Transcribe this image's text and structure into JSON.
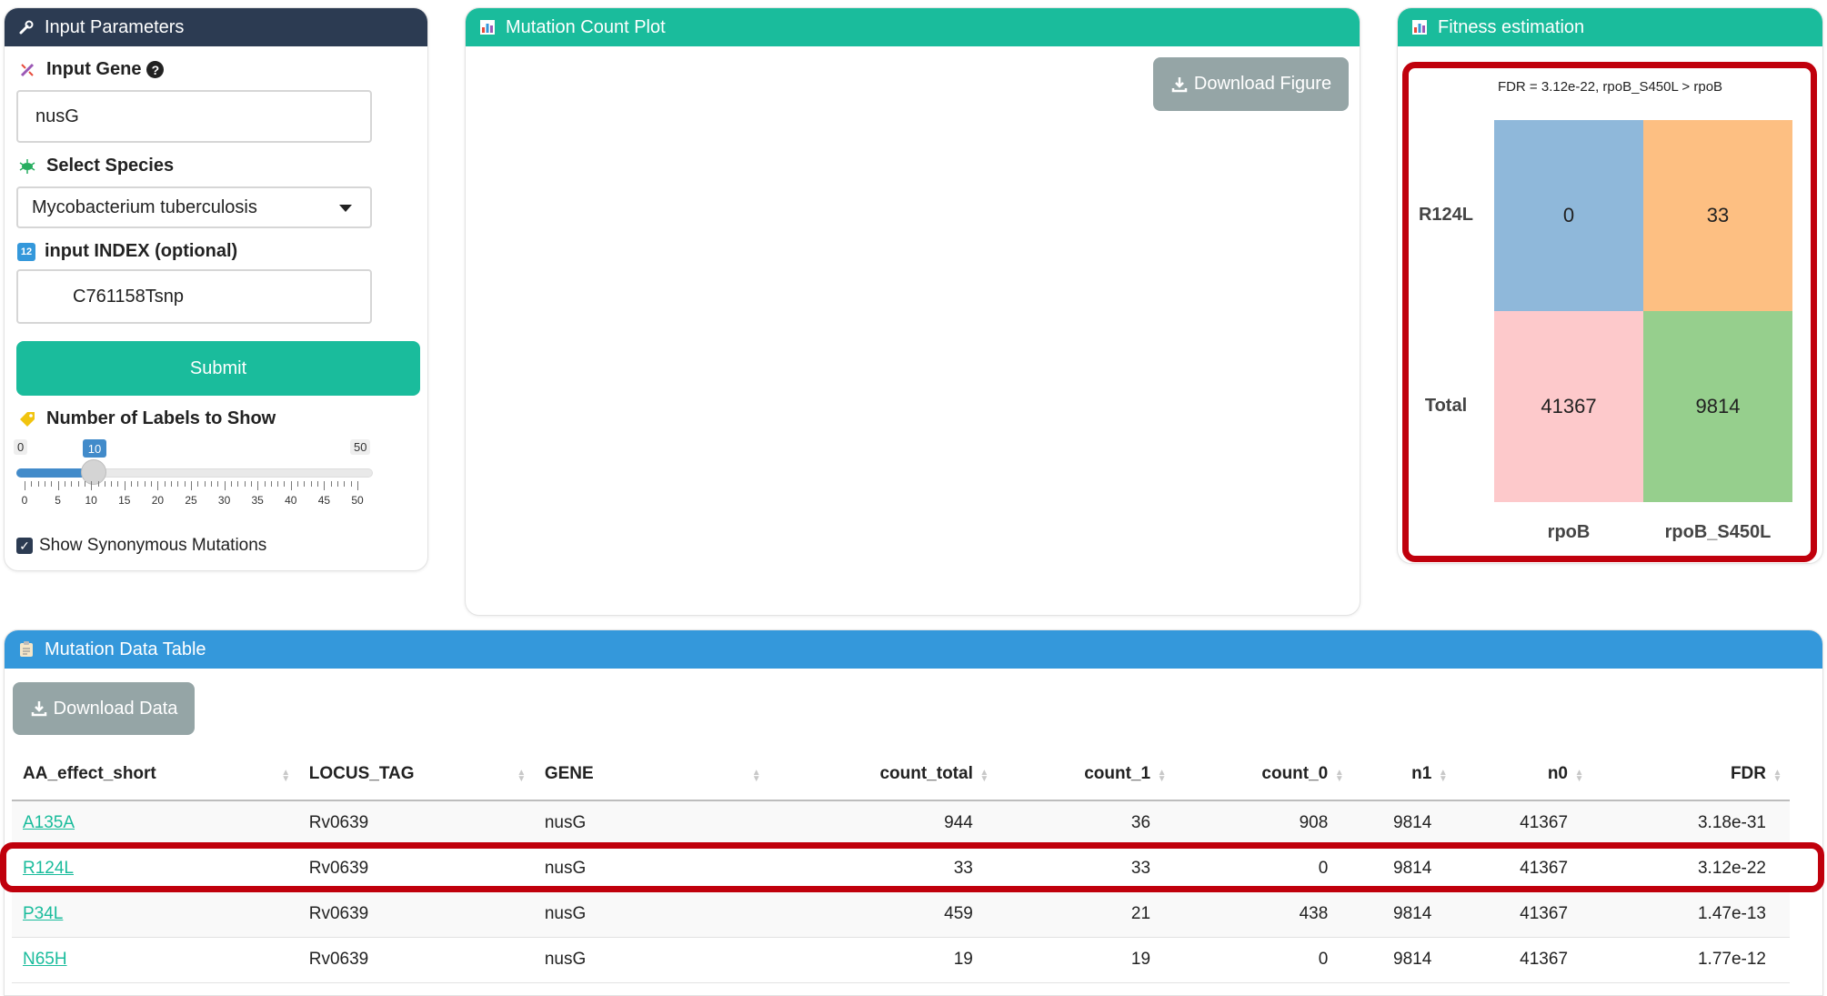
{
  "input_panel": {
    "title": "Input Parameters",
    "gene_label": "Input Gene",
    "gene_value": "nusG",
    "species_label": "Select Species",
    "species_value": "Mycobacterium tuberculosis",
    "index_label": "input INDEX (optional)",
    "index_value": "C761158Tsnp",
    "submit_label": "Submit",
    "labels_title": "Number of Labels to Show",
    "slider": {
      "min": "0",
      "max": "50",
      "value": "10",
      "ticks": [
        "0",
        "5",
        "10",
        "15",
        "20",
        "25",
        "30",
        "35",
        "40",
        "45",
        "50"
      ]
    },
    "synonymous_label": "Show Synonymous Mutations",
    "synonymous_checked": true
  },
  "plot_panel": {
    "title": "Mutation Count Plot",
    "download_label": "Download Figure"
  },
  "fitness_panel": {
    "title": "Fitness estimation",
    "caption": "FDR = 3.12e-22, rpoB_S450L > rpoB",
    "rows": [
      "R124L",
      "Total"
    ],
    "cols": [
      "rpoB",
      "rpoB_S450L"
    ],
    "cells": [
      [
        "0",
        "33"
      ],
      [
        "41367",
        "9814"
      ]
    ],
    "colors": [
      [
        "#8fb8da",
        "#fdbf82"
      ],
      [
        "#fdc9cb",
        "#96cf8d"
      ]
    ]
  },
  "table_panel": {
    "title": "Mutation Data Table",
    "download_label": "Download Data",
    "columns": [
      "AA_effect_short",
      "LOCUS_TAG",
      "GENE",
      "count_total",
      "count_1",
      "count_0",
      "n1",
      "n0",
      "FDR"
    ],
    "rows": [
      [
        "A135A",
        "Rv0639",
        "nusG",
        "944",
        "36",
        "908",
        "9814",
        "41367",
        "3.18e-31"
      ],
      [
        "R124L",
        "Rv0639",
        "nusG",
        "33",
        "33",
        "0",
        "9814",
        "41367",
        "3.12e-22"
      ],
      [
        "P34L",
        "Rv0639",
        "nusG",
        "459",
        "21",
        "438",
        "9814",
        "41367",
        "1.47e-13"
      ],
      [
        "N65H",
        "Rv0639",
        "nusG",
        "19",
        "19",
        "0",
        "9814",
        "41367",
        "1.77e-12"
      ]
    ]
  },
  "colors": {
    "dark_header": "#2c3b52",
    "teal": "#1abc9c",
    "blue": "#3498db",
    "gray_button": "#95a5a6",
    "highlight_red": "#c0000c"
  }
}
